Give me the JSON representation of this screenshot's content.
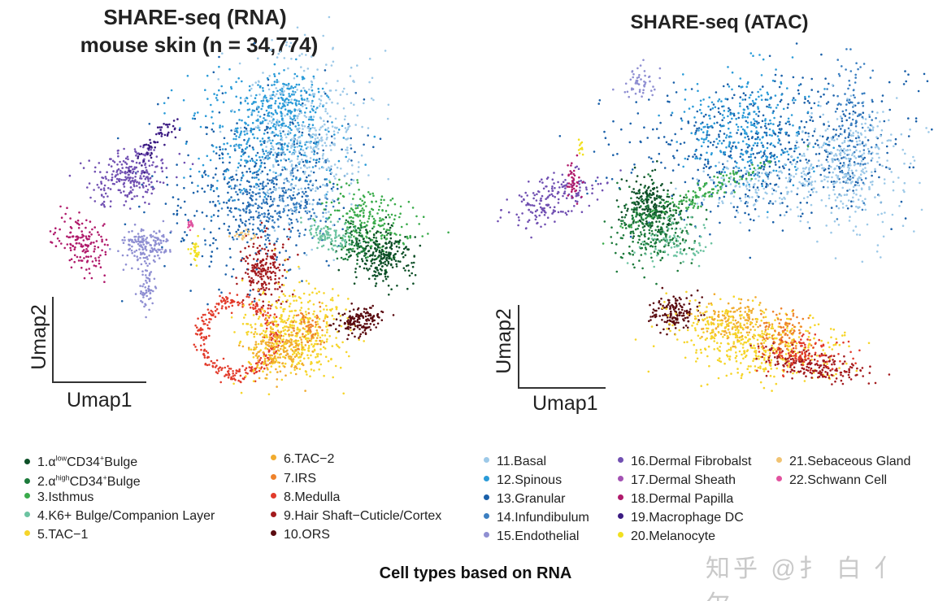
{
  "chart_data": [
    {
      "type": "scatter",
      "title": "SHARE-seq (RNA)",
      "subtitle": "mouse skin (n = 34,774)",
      "xlabel": "Umap1",
      "ylabel": "Umap2",
      "grid": false,
      "axis_ticks": false
    },
    {
      "type": "scatter",
      "title": "SHARE-seq (ATAC)",
      "xlabel": "Umap1",
      "ylabel": "Umap2",
      "grid": false,
      "axis_ticks": false
    }
  ],
  "legend": {
    "placement": "bottom",
    "items": [
      {
        "num": "1.",
        "pre": "α",
        "sup": "low",
        "mid": "CD34",
        "sup2": "+",
        "post": "Bulge",
        "color": "#0d4f27"
      },
      {
        "num": "2.",
        "pre": "α",
        "sup": "high",
        "mid": "CD34",
        "sup2": "+",
        "post": "Bulge",
        "color": "#1c7a3b"
      },
      {
        "label": "3.Isthmus",
        "color": "#3aab4b"
      },
      {
        "label": "4.K6+ Bulge/Companion Layer",
        "color": "#6cc3a1"
      },
      {
        "label": "5.TAC−1",
        "color": "#f6d52a"
      },
      {
        "label": "6.TAC−2",
        "color": "#f1ab2f"
      },
      {
        "label": "7.IRS",
        "color": "#ee822b"
      },
      {
        "label": "8.Medulla",
        "color": "#e23b2b"
      },
      {
        "label": "9.Hair Shaft−Cuticle/Cortex",
        "color": "#a31a1d"
      },
      {
        "label": "10.ORS",
        "color": "#5a0b10"
      },
      {
        "label": "11.Basal",
        "color": "#9dc9e8"
      },
      {
        "label": "12.Spinous",
        "color": "#2a9bd8"
      },
      {
        "label": "13.Granular",
        "color": "#1a60a9"
      },
      {
        "label": "14.Infundibulum",
        "color": "#3b7fc1"
      },
      {
        "label": "15.Endothelial",
        "color": "#8f8fd2"
      },
      {
        "label": "16.Dermal Fibrobalst",
        "color": "#7150b2"
      },
      {
        "label": "17.Dermal Sheath",
        "color": "#a352b3"
      },
      {
        "label": "18.Dermal Papilla",
        "color": "#b01a6b"
      },
      {
        "label": "19.Macrophage DC",
        "color": "#3b1b82"
      },
      {
        "label": "20.Melanocyte",
        "color": "#f1e020"
      },
      {
        "label": "21.Sebaceous Gland",
        "color": "#f1c372"
      },
      {
        "label": "22.Schwann Cell",
        "color": "#e2529f"
      }
    ]
  },
  "caption": "Cell types based on RNA",
  "watermark": "知乎 @扌 白 亻 尔"
}
